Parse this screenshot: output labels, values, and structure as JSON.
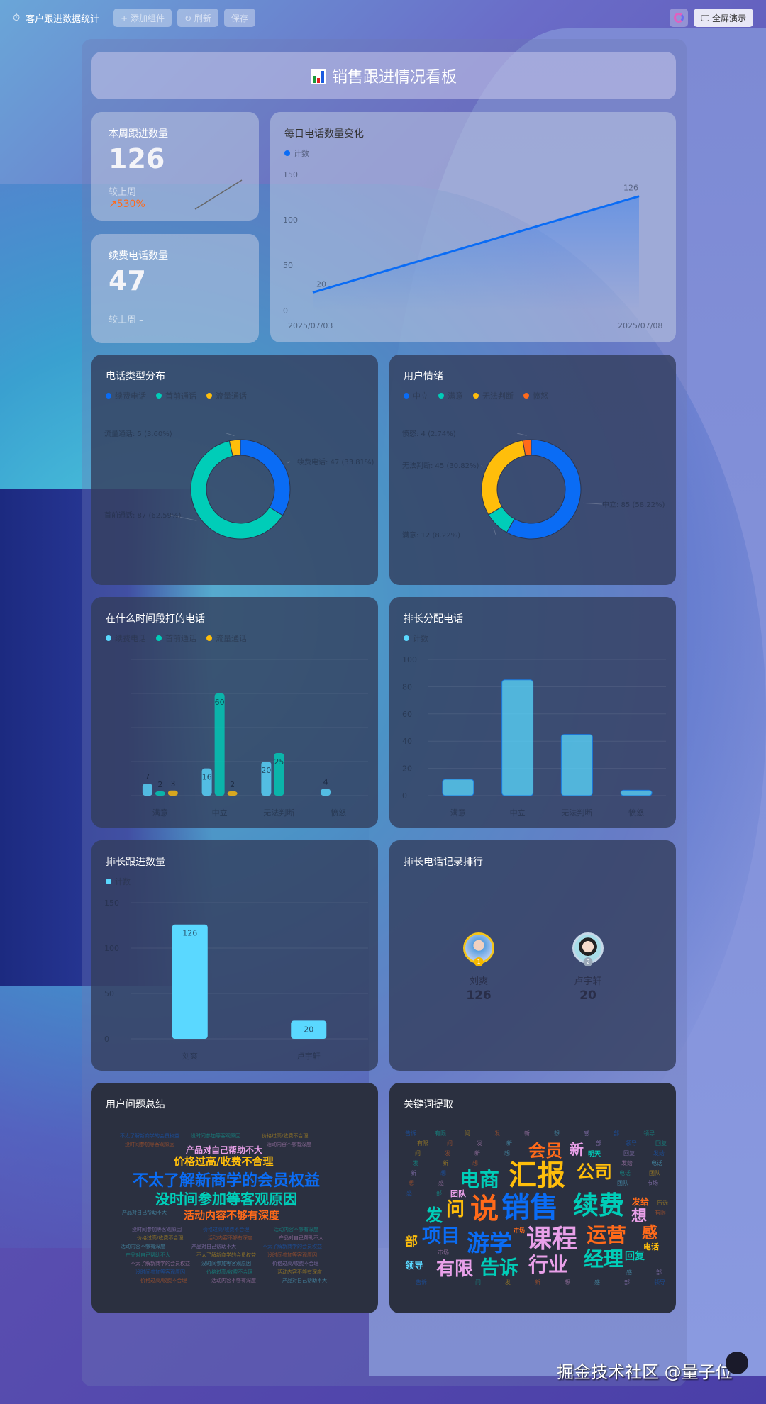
{
  "topbar": {
    "title": "客户跟进数据统计",
    "buttons": [
      "+ 添加组件",
      "↻ 刷新",
      "保存"
    ],
    "fullscreen": "全屏演示"
  },
  "header": {
    "title": "销售跟进情况看板"
  },
  "stats": [
    {
      "label": "本周跟进数量",
      "value": "126",
      "compare": "较上周",
      "change": "↗530%"
    },
    {
      "label": "续费电话数量",
      "value": "47",
      "compare": "较上周 –"
    }
  ],
  "colors": {
    "blue": "#0a6cf5",
    "teal": "#00cdb8",
    "yellow": "#ffbe0b",
    "orange": "#ff6a1a",
    "cyan": "#5ad8ff"
  },
  "chart_data": [
    {
      "id": "daily",
      "type": "line",
      "title": "每日电话数量变化",
      "legend": [
        "计数"
      ],
      "x": [
        "2025/07/03",
        "2025/07/08"
      ],
      "values": [
        20,
        126
      ],
      "ylim": [
        0,
        150
      ],
      "yticks": [
        0,
        50,
        100,
        150
      ]
    },
    {
      "id": "calltype",
      "type": "pie",
      "title": "电话类型分布",
      "legend": [
        "续费电话",
        "首前通话",
        "流量通话"
      ],
      "values": [
        47,
        87,
        5
      ],
      "labels": [
        "续费电话: 47 (33.81%)",
        "首前通话: 87 (62.59%)",
        "流量通话: 5 (3.60%)"
      ]
    },
    {
      "id": "emotion",
      "type": "pie",
      "title": "用户情绪",
      "legend": [
        "中立",
        "满意",
        "无法判断",
        "愤怒"
      ],
      "values": [
        85,
        12,
        45,
        4
      ],
      "labels": [
        "中立: 85 (58.22%)",
        "满意: 12 (8.22%)",
        "无法判断: 45 (30.82%)",
        "愤怒: 4 (2.74%)"
      ]
    },
    {
      "id": "timeslot",
      "type": "bar",
      "title": "在什么时间段打的电话",
      "legend": [
        "续费电话",
        "首前通话",
        "流量通话"
      ],
      "categories": [
        "满意",
        "中立",
        "无法判断",
        "愤怒"
      ],
      "series": [
        {
          "values": [
            7,
            16,
            20,
            4
          ]
        },
        {
          "values": [
            2,
            60,
            25,
            0
          ]
        },
        {
          "values": [
            3,
            2,
            0,
            0
          ]
        }
      ],
      "ylim": [
        0,
        80
      ]
    },
    {
      "id": "assign",
      "type": "bar",
      "title": "排长分配电话",
      "legend": [
        "计数"
      ],
      "categories": [
        "满意",
        "中立",
        "无法判断",
        "愤怒"
      ],
      "values": [
        12,
        85,
        45,
        4
      ],
      "ylim": [
        0,
        100
      ],
      "yticks": [
        0,
        20,
        40,
        60,
        80,
        100
      ]
    },
    {
      "id": "followup",
      "type": "bar",
      "title": "排长跟进数量",
      "legend": [
        "计数"
      ],
      "categories": [
        "刘爽",
        "卢宇轩"
      ],
      "values": [
        126,
        20
      ],
      "ylim": [
        0,
        150
      ],
      "yticks": [
        0,
        50,
        100,
        150
      ]
    }
  ],
  "ranking": {
    "title": "排长电话记录排行",
    "items": [
      {
        "rank": "1",
        "name": "刘爽",
        "score": "126"
      },
      {
        "rank": "2",
        "name": "卢宇轩",
        "score": "20"
      }
    ]
  },
  "issues": {
    "title": "用户问题总结",
    "words": [
      "不太了解新商学的会员权益",
      "没时间参加等客观原因",
      "价格过高/收费不合理",
      "活动内容不够有深度",
      "产品对自己帮助不大"
    ]
  },
  "keywords": {
    "title": "关键词提取",
    "words": [
      "销售",
      "汇报",
      "说",
      "续费",
      "课程",
      "游学",
      "电商",
      "会员",
      "公司",
      "运营",
      "项目",
      "经理",
      "行业",
      "告诉",
      "有限",
      "问",
      "发",
      "新",
      "想",
      "感",
      "部",
      "领导",
      "回复",
      "发给",
      "电话",
      "团队",
      "市场",
      "明天"
    ]
  },
  "watermark": "掘金技术社区 @量子位"
}
